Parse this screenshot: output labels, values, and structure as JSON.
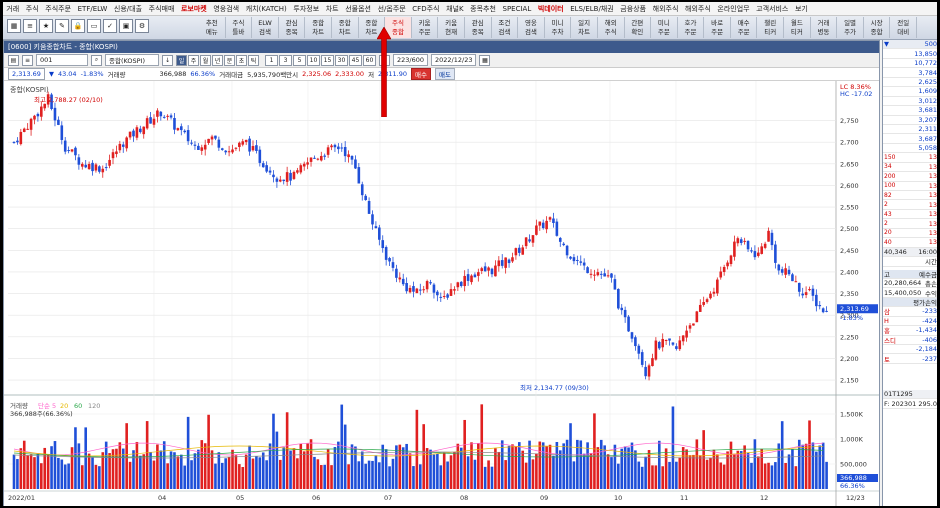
{
  "menu": [
    "거래",
    "주식",
    "주식주문",
    "ETF/ELW",
    "신용/대출",
    "주식매매",
    "로보마켓",
    "영웅검색",
    "캐치(KATCH)",
    "투자정보",
    "차트",
    "선물옵션",
    "선/옵주문",
    "CFD주식",
    "채널K",
    "종목추천",
    "SPECIAL",
    "빅데이터",
    "ELS/ELB/채권",
    "금융상품",
    "해외주식",
    "해외주식",
    "온라인업무",
    "고객서비스",
    "보기"
  ],
  "menu_highlight": [
    6,
    17
  ],
  "toolbar": {
    "buttons": [
      [
        "추천",
        "메뉴"
      ],
      [
        "주식",
        "틀바"
      ],
      [
        "ELW",
        "검색"
      ],
      [
        "관심",
        "종목"
      ],
      [
        "종합",
        "차트"
      ],
      [
        "종합",
        "차트"
      ],
      [
        "종합",
        "차트"
      ],
      [
        "주식",
        "종합"
      ],
      [
        "키움",
        "주문"
      ],
      [
        "키움",
        "현재"
      ],
      [
        "관심",
        "종목"
      ],
      [
        "조건",
        "검색"
      ],
      [
        "영웅",
        "검색"
      ],
      [
        "미니",
        "주차"
      ],
      [
        "일지",
        "차트"
      ],
      [
        "해외",
        "주식"
      ],
      [
        "간편",
        "확인"
      ],
      [
        "미니",
        "주문"
      ],
      [
        "호가",
        "주문"
      ],
      [
        "바로",
        "주문"
      ],
      [
        "매수",
        "주문"
      ],
      [
        "챌린",
        "티커"
      ],
      [
        "월드",
        "티커"
      ],
      [
        "거래",
        "병동"
      ],
      [
        "일별",
        "주가"
      ],
      [
        "시장",
        "종합"
      ],
      [
        "전일",
        "대비"
      ]
    ],
    "highlight_index": 7
  },
  "window": {
    "title": "[0600] 키움종합차트 - 종합(KOSPI)"
  },
  "controls": {
    "code": "001",
    "name": "종합(KOSPI)",
    "periods": [
      "일",
      "주",
      "월",
      "년",
      "분",
      "초",
      "틱"
    ],
    "minutes": [
      "1",
      "3",
      "5",
      "10",
      "15",
      "30",
      "45",
      "60"
    ],
    "count": "223/600",
    "date": "2022/12/23",
    "buy": "매수",
    "sell": "매도"
  },
  "info": {
    "price": "2,313.69",
    "arrow": "▼",
    "change": "43.04",
    "pct": "-1.83%",
    "vol_label": "거래량",
    "volume": "366,988",
    "vol_pct": "66.36%",
    "amt_label": "거래대금",
    "amount": "5,935,790백만시",
    "open": "2,325.06",
    "high": "2,333.00",
    "low_label": "저",
    "low": "2,311.90"
  },
  "chart_labels": {
    "name": "종합(KOSPI)",
    "max_label": "최고 2,788.27 (02/10)",
    "min_label": "최저 2,134.77 (09/30)",
    "lc": "LC 8.36%",
    "hc": "HC -17.02",
    "price_tag": "2,313.69",
    "price_tag_pct": "-1.83%",
    "vol_legend": [
      "거래량",
      "단순 5",
      "20",
      "60",
      "120"
    ],
    "vol_value": "366,988주(66.36%)",
    "vol_tag": "366,988",
    "vol_tag_pct": "66.36%"
  },
  "chart_data": {
    "type": "candlestick",
    "title": "종합(KOSPI)",
    "ylim": [
      2120,
      2830
    ],
    "price_ticks": [
      2750,
      2700,
      2650,
      2600,
      2550,
      2500,
      2450,
      2400,
      2350,
      2300,
      2250,
      2200,
      2150
    ],
    "vol_ticks": [
      "1,500K",
      "1,000K",
      "500,000"
    ],
    "x_labels": [
      "2022/01",
      "04",
      "05",
      "06",
      "07",
      "08",
      "09",
      "10",
      "11",
      "12",
      "12/23"
    ],
    "anchors": [
      [
        0,
        2700
      ],
      [
        5,
        2750
      ],
      [
        10,
        2800
      ],
      [
        15,
        2690
      ],
      [
        20,
        2650
      ],
      [
        26,
        2640
      ],
      [
        32,
        2700
      ],
      [
        38,
        2740
      ],
      [
        43,
        2770
      ],
      [
        48,
        2730
      ],
      [
        53,
        2690
      ],
      [
        58,
        2710
      ],
      [
        63,
        2680
      ],
      [
        68,
        2700
      ],
      [
        72,
        2660
      ],
      [
        77,
        2620
      ],
      [
        82,
        2620
      ],
      [
        87,
        2660
      ],
      [
        92,
        2680
      ],
      [
        96,
        2690
      ],
      [
        100,
        2640
      ],
      [
        103,
        2560
      ],
      [
        106,
        2490
      ],
      [
        110,
        2420
      ],
      [
        114,
        2370
      ],
      [
        118,
        2350
      ],
      [
        122,
        2380
      ],
      [
        125,
        2330
      ],
      [
        128,
        2360
      ],
      [
        132,
        2385
      ],
      [
        136,
        2400
      ],
      [
        140,
        2405
      ],
      [
        145,
        2430
      ],
      [
        149,
        2460
      ],
      [
        153,
        2500
      ],
      [
        157,
        2520
      ],
      [
        160,
        2470
      ],
      [
        163,
        2440
      ],
      [
        167,
        2410
      ],
      [
        171,
        2400
      ],
      [
        175,
        2380
      ],
      [
        178,
        2300
      ],
      [
        182,
        2240
      ],
      [
        185,
        2170
      ],
      [
        188,
        2230
      ],
      [
        191,
        2235
      ],
      [
        194,
        2220
      ],
      [
        197,
        2270
      ],
      [
        200,
        2300
      ],
      [
        203,
        2340
      ],
      [
        206,
        2375
      ],
      [
        209,
        2430
      ],
      [
        212,
        2480
      ],
      [
        215,
        2450
      ],
      [
        218,
        2440
      ],
      [
        221,
        2490
      ],
      [
        224,
        2400
      ],
      [
        227,
        2395
      ],
      [
        230,
        2360
      ],
      [
        233,
        2350
      ],
      [
        236,
        2320
      ],
      [
        238,
        2305
      ]
    ],
    "count": 239,
    "volume_range": [
      0,
      1900000
    ]
  },
  "right_panel": {
    "header": [
      "▼",
      "500"
    ],
    "rows": [
      [
        "",
        "13,850"
      ],
      [
        "",
        "10,772"
      ],
      [
        "",
        "3,784"
      ],
      [
        "",
        "2,625"
      ],
      [
        "",
        "1,609"
      ],
      [
        "",
        "3,012"
      ],
      [
        "",
        "3,681"
      ],
      [
        "",
        "3,207"
      ],
      [
        "",
        "2,311"
      ],
      [
        "",
        "3,687"
      ],
      [
        "",
        "5,058"
      ],
      [
        "150",
        "13"
      ],
      [
        "34",
        "13"
      ],
      [
        "200",
        "13"
      ],
      [
        "100",
        "13"
      ],
      [
        "82",
        "13"
      ],
      [
        "2",
        "13"
      ],
      [
        "43",
        "13"
      ],
      [
        "2",
        "13"
      ],
      [
        "20",
        "13"
      ],
      [
        "40",
        "13"
      ]
    ],
    "total": [
      "40,346",
      "16:00"
    ],
    "time_label": "시간",
    "tabs": [
      "고",
      "예수금"
    ],
    "val1": "20,280,664",
    "val1_label": "총손",
    "val2": "15,400,050",
    "val2_label": "수익",
    "eval_label": "평가손익",
    "items": [
      [
        "삼",
        "-233"
      ],
      [
        "H",
        "-424"
      ],
      [
        "홍",
        "-1,434"
      ],
      [
        "스디",
        "-406"
      ],
      [
        "",
        "-2,184"
      ],
      [
        "토",
        "-237"
      ]
    ],
    "account": "01T1295",
    "footer": "F: 202301 295.0"
  }
}
